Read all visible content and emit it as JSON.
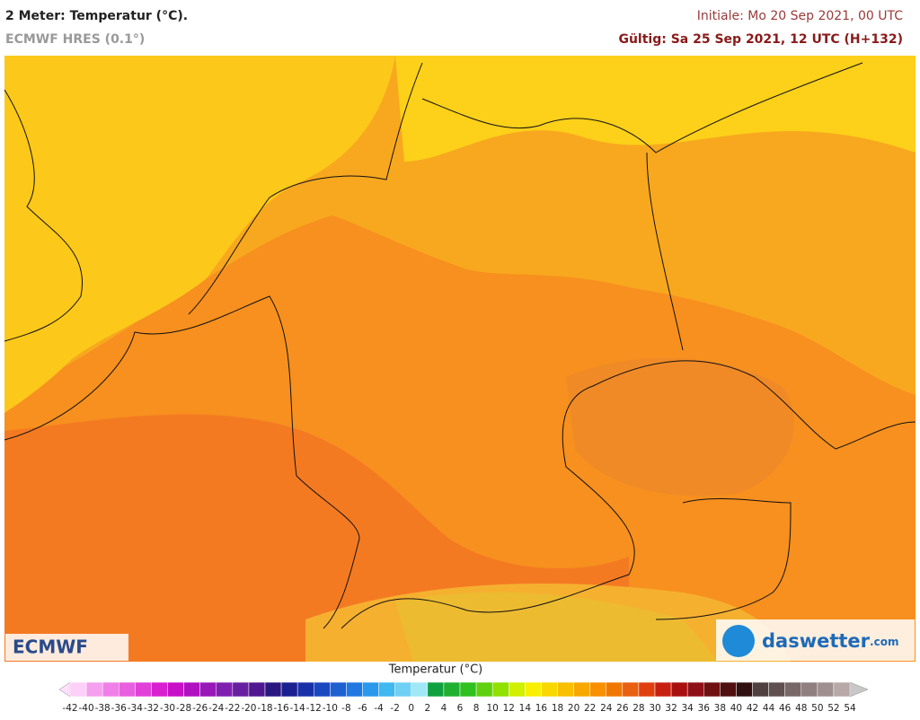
{
  "header": {
    "title": "2 Meter: Temperatur (°C).",
    "model": "ECMWF HRES (0.1°)",
    "init": "Initiale: Mo 20 Sep 2021, 00 UTC",
    "valid": "Gültig: Sa 25 Sep 2021, 12 UTC (H+132)"
  },
  "map": {
    "logo_left": "ECMWF",
    "logo_right": "daswetter",
    "logo_right_suffix": ".com"
  },
  "legend": {
    "title": "Temperatur (°C)",
    "ticks": [
      -42,
      -40,
      -38,
      -36,
      -34,
      -32,
      -30,
      -28,
      -26,
      -24,
      -22,
      -20,
      -18,
      -16,
      -14,
      -12,
      -10,
      -8,
      -6,
      -4,
      -2,
      0,
      2,
      4,
      6,
      8,
      10,
      12,
      14,
      16,
      18,
      20,
      22,
      24,
      26,
      28,
      30,
      32,
      34,
      36,
      38,
      40,
      42,
      44,
      46,
      48,
      50,
      52,
      54
    ],
    "colors": [
      "#fcd0f8",
      "#f5a0ee",
      "#f080e8",
      "#e860e0",
      "#e040d8",
      "#d820d0",
      "#c810c8",
      "#b010c0",
      "#9818b8",
      "#8020b0",
      "#6820a0",
      "#501890",
      "#2a1880",
      "#1a2090",
      "#1830a8",
      "#1a48c0",
      "#1e60d0",
      "#2078e0",
      "#2a98ec",
      "#40b8f0",
      "#70d0f4",
      "#a0e8f8",
      "#10a040",
      "#20b030",
      "#30c020",
      "#60d010",
      "#90e000",
      "#d0f000",
      "#f8f000",
      "#f8d800",
      "#f8c000",
      "#f8a800",
      "#f89000",
      "#f07800",
      "#e86010",
      "#e04010",
      "#c82010",
      "#a81010",
      "#901018",
      "#701010",
      "#501010",
      "#301010",
      "#504040",
      "#605050",
      "#786868",
      "#908080",
      "#a09090",
      "#b8a8a8"
    ],
    "under_color": "#fce0fc",
    "over_color": "#c8c8c8"
  }
}
